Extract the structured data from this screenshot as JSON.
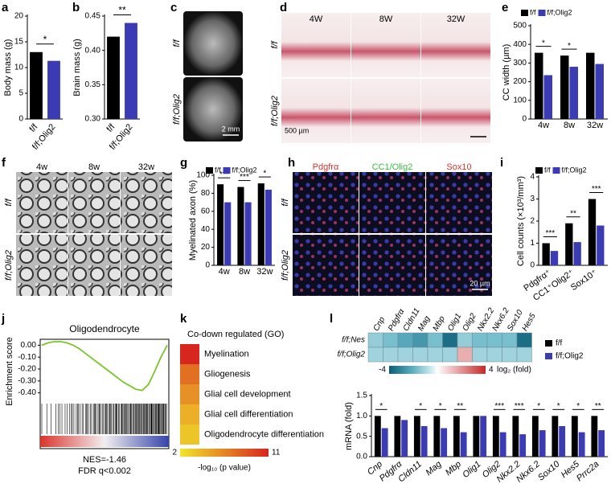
{
  "chart_data": [
    {
      "panel": "a",
      "type": "bar",
      "y_label": "Body mass (g)",
      "categories": [
        "f/f",
        "f/f;Olig2"
      ],
      "values": [
        13,
        11.3
      ],
      "colors": [
        "#000000",
        "#3b3bb3"
      ],
      "ylim": [
        0,
        20
      ],
      "yticks": [
        0,
        5,
        10,
        15,
        20
      ],
      "significance": [
        "*",
        null
      ]
    },
    {
      "panel": "b",
      "type": "bar",
      "y_label": "Brain mass (g)",
      "categories": [
        "f/f",
        "f/f;Olig2"
      ],
      "values": [
        0.42,
        0.44
      ],
      "colors": [
        "#000000",
        "#3b3bb3"
      ],
      "ylim": [
        0.3,
        0.45
      ],
      "yticks": [
        {
          "value": 0.3,
          "label": "0.30"
        },
        {
          "value": 0.35,
          "label": "0.35"
        },
        {
          "value": 0.4,
          "label": "0.40"
        },
        {
          "value": 0.45,
          "label": "0.45"
        }
      ],
      "significance": [
        "**",
        null
      ]
    },
    {
      "panel": "e",
      "type": "bar",
      "y_label": "CC width (µm)",
      "categories": [
        "4w",
        "8w",
        "32w"
      ],
      "series": [
        {
          "name": "f/f",
          "color": "#000000",
          "values": [
            355,
            340,
            355
          ]
        },
        {
          "name": "f/f;Olig2",
          "color": "#3b3bb3",
          "values": [
            235,
            280,
            295
          ]
        }
      ],
      "ylim": [
        0,
        500
      ],
      "yticks": [
        0,
        100,
        200,
        300,
        400,
        500
      ],
      "significance": [
        "*",
        "*",
        null
      ]
    },
    {
      "panel": "g",
      "type": "bar",
      "y_label": "Myelinated axon (%)",
      "categories": [
        "4w",
        "8w",
        "32w"
      ],
      "series": [
        {
          "name": "f/f",
          "color": "#000000",
          "values": [
            90,
            87,
            91
          ]
        },
        {
          "name": "f/f;Olig2",
          "color": "#3b3bb3",
          "values": [
            70,
            70,
            84
          ]
        }
      ],
      "ylim": [
        0,
        100
      ],
      "yticks": [
        0,
        20,
        40,
        60,
        80,
        100
      ],
      "significance": [
        "***",
        "***",
        "*"
      ]
    },
    {
      "panel": "i",
      "type": "bar",
      "y_label": "Cell counts (×10³/mm³)",
      "categories": [
        "Pdgfrα⁺",
        "CC1⁺Olig2⁺",
        "Sox10⁺"
      ],
      "series": [
        {
          "name": "f/f",
          "color": "#000000",
          "values": [
            1.0,
            1.9,
            3.0
          ]
        },
        {
          "name": "f/f;Olig2",
          "color": "#3b3bb3",
          "values": [
            0.65,
            1.05,
            1.8
          ]
        }
      ],
      "ylim": [
        0,
        4
      ],
      "yticks": [
        0,
        1,
        2,
        3,
        4
      ],
      "significance": [
        "***",
        "**",
        "***"
      ]
    },
    {
      "panel": "j",
      "type": "line",
      "title": "Oligodendrocyte",
      "y_label": "Enrichment score",
      "values": [
        0,
        0.02,
        0.03,
        0.03,
        0.02,
        0.0,
        -0.03,
        -0.07,
        -0.11,
        -0.15,
        -0.19,
        -0.23,
        -0.27,
        -0.31,
        -0.34,
        -0.37,
        -0.38,
        -0.33,
        -0.22,
        -0.1,
        0.0
      ],
      "color": "#7cc42a",
      "ylim": [
        -0.45,
        0.05
      ],
      "yticks": [
        {
          "value": 0,
          "label": "0.00"
        },
        {
          "value": -0.1,
          "label": "-0.10"
        },
        {
          "value": -0.2,
          "label": "-0.20"
        },
        {
          "value": -0.3,
          "label": "-0.30"
        },
        {
          "value": -0.4,
          "label": "-0.40"
        }
      ],
      "annotations": [
        "NES=-1.46",
        "FDR q<0.002"
      ]
    },
    {
      "panel": "k",
      "type": "heatmap",
      "title": "Co-down regulated (GO)",
      "categories": [
        "Myelination",
        "Gliogenesis",
        "Glial cell development",
        "Glial cell differentiation",
        "Oligodendrocyte differentiation"
      ],
      "values": [
        11,
        7.5,
        6,
        4.5,
        3.5
      ],
      "clim": [
        2,
        11
      ],
      "colorbar_label": "-log₁₀ (p value)"
    },
    {
      "panel": "l",
      "type": "heatmap",
      "columns": [
        "Cnp",
        "Pdgfrα",
        "Cldn11",
        "Mag",
        "Mbp",
        "Olig1",
        "Olig2",
        "Nkx2.2",
        "Nkx6.2",
        "Sox10",
        "Hes5"
      ],
      "rows": [
        "f/f;Nes",
        "f/f;Olig2"
      ],
      "values": [
        [
          -1.2,
          -1.6,
          -2.2,
          -2.6,
          -1.6,
          -3.6,
          -1.2,
          -1.6,
          -1.6,
          -1.6,
          -3.6
        ],
        [
          -1.0,
          -1.0,
          -1.0,
          -1.0,
          -1.0,
          -1.0,
          1.5,
          -1.0,
          -1.0,
          -1.0,
          -1.0
        ]
      ],
      "clim": [
        -4,
        4
      ],
      "colorbar_label": "log₂ (fold)"
    },
    {
      "panel": "l",
      "type": "bar",
      "y_label": "mRNA (fold)",
      "categories": [
        "Cnp",
        "Pdgfrα",
        "Cldn11",
        "Mag",
        "Mbp",
        "Olig1",
        "Olig2",
        "Nkx2.2",
        "Nkx6.2",
        "Sox10",
        "Hes5",
        "Prrc2a"
      ],
      "series": [
        {
          "name": "f/f",
          "color": "#000000",
          "values": [
            1,
            1,
            1,
            1,
            1,
            1,
            1,
            1,
            1,
            1,
            1,
            1
          ]
        },
        {
          "name": "f/f;Olig2",
          "color": "#3b3bb3",
          "values": [
            0.7,
            0.9,
            0.75,
            0.7,
            0.6,
            1.0,
            0.6,
            0.55,
            0.65,
            0.75,
            0.6,
            0.65
          ]
        }
      ],
      "ylim": [
        0,
        1.5
      ],
      "yticks": [
        {
          "value": 0,
          "label": "0.0"
        },
        {
          "value": 0.5,
          "label": "0.5"
        },
        {
          "value": 1,
          "label": "1.0"
        },
        {
          "value": 1.5,
          "label": "1.5"
        }
      ],
      "significance": [
        "*",
        null,
        "*",
        "*",
        "**",
        null,
        "***",
        "***",
        "*",
        "*",
        "*",
        "**"
      ]
    }
  ],
  "image_panels": [
    {
      "panel": "c",
      "rows": [
        "f/f",
        "f/f;Olig2"
      ],
      "scale_bar": "2 mm"
    },
    {
      "panel": "d",
      "columns": [
        "4W",
        "8W",
        "32W"
      ],
      "rows": [
        "f/f",
        "f/f;Olig2"
      ],
      "scale_bar": "500 µm"
    },
    {
      "panel": "f",
      "columns": [
        "4w",
        "8w",
        "32w"
      ],
      "rows": [
        "f/f",
        "f/f;Olig2"
      ]
    },
    {
      "panel": "h",
      "columns": [
        "Pdgfrα",
        "CC1/Olig2",
        "Sox10"
      ],
      "column_colors": [
        "#e0312d",
        "#3cc03c",
        "#e0312d"
      ],
      "rows": [
        "f/f",
        "f/f;Olig2"
      ],
      "scale_bar": "20 µm"
    }
  ]
}
